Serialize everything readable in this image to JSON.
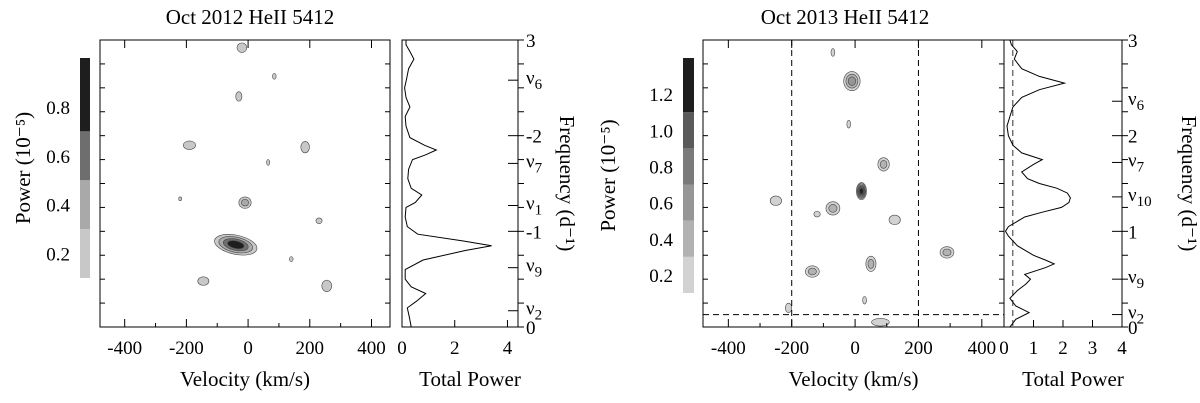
{
  "chart_data": [
    {
      "type": "heatmap",
      "title": "Oct 2012 HeII 5412",
      "colorbar": {
        "label": "Power (10⁻⁵)",
        "ticks": [
          "0.2",
          "0.4",
          "0.6",
          "0.8"
        ],
        "tick_values": [
          0.2,
          0.4,
          0.6,
          0.8
        ],
        "range": [
          0.1,
          1.0
        ],
        "levels": [
          {
            "from": 0.1,
            "to": 0.3,
            "color": "#c8c8c8"
          },
          {
            "from": 0.3,
            "to": 0.5,
            "color": "#a9a9a9"
          },
          {
            "from": 0.5,
            "to": 0.7,
            "color": "#6e6e6e"
          },
          {
            "from": 0.7,
            "to": 1.0,
            "color": "#1e1e1e"
          }
        ]
      },
      "map": {
        "xlabel": "Velocity (km/s)",
        "xticks": [
          -400,
          -200,
          0,
          200,
          400
        ],
        "xlim": [
          -480,
          460
        ],
        "ylim": [
          0,
          3
        ],
        "dashed_v": [],
        "dashed_h": [],
        "blobs": [
          {
            "v": -40,
            "f": 0.86,
            "p": 0.9,
            "rx": 70,
            "ry": 0.1,
            "rot": 12
          },
          {
            "v": 255,
            "f": 0.43,
            "p": 0.28,
            "rx": 16,
            "ry": 0.06,
            "rot": 0
          },
          {
            "v": -145,
            "f": 0.48,
            "p": 0.22,
            "rx": 18,
            "ry": 0.045,
            "rot": 0
          },
          {
            "v": 230,
            "f": 1.11,
            "p": 0.15,
            "rx": 10,
            "ry": 0.03,
            "rot": 0
          },
          {
            "v": 140,
            "f": 0.71,
            "p": 0.12,
            "rx": 6,
            "ry": 0.025,
            "rot": 0
          },
          {
            "v": -10,
            "f": 1.3,
            "p": 0.3,
            "rx": 20,
            "ry": 0.06,
            "rot": 0
          },
          {
            "v": -190,
            "f": 1.9,
            "p": 0.22,
            "rx": 20,
            "ry": 0.045,
            "rot": 0
          },
          {
            "v": 185,
            "f": 1.88,
            "p": 0.22,
            "rx": 14,
            "ry": 0.06,
            "rot": 0
          },
          {
            "v": 65,
            "f": 1.72,
            "p": 0.12,
            "rx": 5,
            "ry": 0.03,
            "rot": 0
          },
          {
            "v": -220,
            "f": 1.34,
            "p": 0.1,
            "rx": 3,
            "ry": 0.02,
            "rot": 0
          },
          {
            "v": -30,
            "f": 2.41,
            "p": 0.16,
            "rx": 10,
            "ry": 0.05,
            "rot": 0
          },
          {
            "v": 85,
            "f": 2.62,
            "p": 0.12,
            "rx": 6,
            "ry": 0.03,
            "rot": 0
          },
          {
            "v": -20,
            "f": 2.92,
            "p": 0.22,
            "rx": 16,
            "ry": 0.05,
            "rot": 0
          }
        ]
      },
      "power": {
        "xlabel": "Total Power",
        "xticks": [
          0,
          2,
          4
        ],
        "xlim": [
          0,
          4.4
        ],
        "vline": null,
        "profile": [
          [
            0.0,
            0.35
          ],
          [
            0.1,
            0.28
          ],
          [
            0.2,
            0.2
          ],
          [
            0.27,
            0.55
          ],
          [
            0.35,
            0.9
          ],
          [
            0.42,
            0.35
          ],
          [
            0.5,
            0.12
          ],
          [
            0.6,
            0.12
          ],
          [
            0.7,
            0.8
          ],
          [
            0.8,
            2.4
          ],
          [
            0.85,
            3.4
          ],
          [
            0.9,
            2.3
          ],
          [
            0.97,
            0.6
          ],
          [
            1.05,
            0.2
          ],
          [
            1.15,
            0.12
          ],
          [
            1.25,
            0.15
          ],
          [
            1.3,
            0.5
          ],
          [
            1.38,
            0.75
          ],
          [
            1.45,
            0.35
          ],
          [
            1.55,
            0.22
          ],
          [
            1.65,
            0.25
          ],
          [
            1.75,
            0.4
          ],
          [
            1.8,
            0.9
          ],
          [
            1.85,
            1.3
          ],
          [
            1.9,
            0.85
          ],
          [
            1.98,
            0.3
          ],
          [
            2.1,
            0.15
          ],
          [
            2.2,
            0.12
          ],
          [
            2.3,
            0.3
          ],
          [
            2.4,
            0.15
          ],
          [
            2.5,
            0.1
          ],
          [
            2.6,
            0.18
          ],
          [
            2.7,
            0.25
          ],
          [
            2.8,
            0.45
          ],
          [
            2.88,
            0.3
          ],
          [
            2.95,
            0.15
          ],
          [
            3.0,
            0.15
          ]
        ]
      },
      "frequency_axis": {
        "label": "Frequency (d⁻¹)",
        "ylim": [
          0,
          3
        ],
        "ticks": [
          {
            "value": 0,
            "label": "0"
          },
          {
            "value": 0.17,
            "label": "ν2"
          },
          {
            "value": 0.62,
            "label": "ν9"
          },
          {
            "value": 1.0,
            "label": "-1"
          },
          {
            "value": 1.27,
            "label": "ν1"
          },
          {
            "value": 1.71,
            "label": "ν7"
          },
          {
            "value": 2.0,
            "label": "-2"
          },
          {
            "value": 2.58,
            "label": "ν6"
          },
          {
            "value": 3.0,
            "label": "3"
          }
        ]
      }
    },
    {
      "type": "heatmap",
      "title": "Oct 2013 HeII 5412",
      "colorbar": {
        "label": "Power (10⁻⁵)",
        "ticks": [
          "0.2",
          "0.4",
          "0.6",
          "0.8",
          "1.0",
          "1.2"
        ],
        "tick_values": [
          0.2,
          0.4,
          0.6,
          0.8,
          1.0,
          1.2
        ],
        "range": [
          0.1,
          1.4
        ],
        "levels": [
          {
            "from": 0.1,
            "to": 0.3,
            "color": "#d2d2d2"
          },
          {
            "from": 0.3,
            "to": 0.5,
            "color": "#b2b2b2"
          },
          {
            "from": 0.5,
            "to": 0.7,
            "color": "#969696"
          },
          {
            "from": 0.7,
            "to": 0.9,
            "color": "#7a7a7a"
          },
          {
            "from": 0.9,
            "to": 1.1,
            "color": "#5a5a5a"
          },
          {
            "from": 1.1,
            "to": 1.4,
            "color": "#1e1e1e"
          }
        ]
      },
      "map": {
        "xlabel": "Velocity (km/s)",
        "xticks": [
          -400,
          -200,
          0,
          200,
          400
        ],
        "xlim": [
          -480,
          470
        ],
        "ylim": [
          0,
          3
        ],
        "dashed_v": [
          -200,
          200
        ],
        "dashed_h": [
          0.13
        ],
        "blobs": [
          {
            "v": 20,
            "f": 1.42,
            "p": 1.3,
            "rx": 16,
            "ry": 0.09,
            "rot": 0
          },
          {
            "v": -10,
            "f": 2.57,
            "p": 0.5,
            "rx": 26,
            "ry": 0.1,
            "rot": 0
          },
          {
            "v": 90,
            "f": 1.7,
            "p": 0.4,
            "rx": 18,
            "ry": 0.07,
            "rot": 0
          },
          {
            "v": -70,
            "f": 1.24,
            "p": 0.35,
            "rx": 22,
            "ry": 0.07,
            "rot": 0
          },
          {
            "v": -250,
            "f": 1.32,
            "p": 0.2,
            "rx": 18,
            "ry": 0.05,
            "rot": 0
          },
          {
            "v": -120,
            "f": 1.18,
            "p": 0.15,
            "rx": 10,
            "ry": 0.03,
            "rot": 0
          },
          {
            "v": 125,
            "f": 1.12,
            "p": 0.25,
            "rx": 18,
            "ry": 0.05,
            "rot": 0
          },
          {
            "v": 290,
            "f": 0.78,
            "p": 0.35,
            "rx": 22,
            "ry": 0.06,
            "rot": 0
          },
          {
            "v": 50,
            "f": 0.66,
            "p": 0.35,
            "rx": 16,
            "ry": 0.08,
            "rot": 0
          },
          {
            "v": -135,
            "f": 0.58,
            "p": 0.3,
            "rx": 22,
            "ry": 0.06,
            "rot": 0
          },
          {
            "v": -20,
            "f": 2.12,
            "p": 0.15,
            "rx": 6,
            "ry": 0.04,
            "rot": 0
          },
          {
            "v": -70,
            "f": 2.87,
            "p": 0.15,
            "rx": 6,
            "ry": 0.04,
            "rot": 0
          },
          {
            "v": -110,
            "f": 3.07,
            "p": 0.2,
            "rx": 12,
            "ry": 0.05,
            "rot": 0
          },
          {
            "v": -210,
            "f": 0.2,
            "p": 0.15,
            "rx": 10,
            "ry": 0.05,
            "rot": 0
          },
          {
            "v": 30,
            "f": 0.28,
            "p": 0.15,
            "rx": 6,
            "ry": 0.04,
            "rot": 0
          },
          {
            "v": 80,
            "f": 0.05,
            "p": 0.12,
            "rx": 28,
            "ry": 0.04,
            "rot": 0
          }
        ]
      },
      "power": {
        "xlabel": "Total Power",
        "xticks": [
          0,
          1,
          2,
          3,
          4
        ],
        "xlim": [
          0,
          4
        ],
        "vline": 0.3,
        "profile": [
          [
            0.0,
            0.2
          ],
          [
            0.08,
            0.4
          ],
          [
            0.15,
            0.85
          ],
          [
            0.22,
            0.4
          ],
          [
            0.3,
            0.2
          ],
          [
            0.38,
            0.45
          ],
          [
            0.45,
            0.75
          ],
          [
            0.5,
            0.9
          ],
          [
            0.55,
            0.7
          ],
          [
            0.62,
            1.4
          ],
          [
            0.66,
            1.7
          ],
          [
            0.7,
            1.4
          ],
          [
            0.75,
            1.0
          ],
          [
            0.85,
            0.45
          ],
          [
            0.95,
            0.15
          ],
          [
            1.0,
            0.05
          ],
          [
            1.05,
            0.15
          ],
          [
            1.15,
            0.7
          ],
          [
            1.2,
            1.3
          ],
          [
            1.25,
            1.95
          ],
          [
            1.3,
            2.2
          ],
          [
            1.35,
            2.25
          ],
          [
            1.4,
            2.15
          ],
          [
            1.45,
            1.8
          ],
          [
            1.5,
            1.2
          ],
          [
            1.55,
            0.8
          ],
          [
            1.62,
            0.6
          ],
          [
            1.7,
            1.0
          ],
          [
            1.75,
            1.3
          ],
          [
            1.82,
            0.6
          ],
          [
            1.9,
            0.3
          ],
          [
            2.0,
            0.15
          ],
          [
            2.1,
            0.1
          ],
          [
            2.2,
            0.2
          ],
          [
            2.3,
            0.3
          ],
          [
            2.4,
            0.6
          ],
          [
            2.48,
            1.2
          ],
          [
            2.55,
            2.05
          ],
          [
            2.62,
            1.2
          ],
          [
            2.7,
            0.6
          ],
          [
            2.8,
            0.35
          ],
          [
            2.88,
            0.45
          ],
          [
            2.95,
            0.25
          ],
          [
            3.0,
            0.2
          ]
        ]
      },
      "frequency_axis": {
        "label": "Frequency (d⁻¹)",
        "ylim": [
          0,
          3
        ],
        "ticks": [
          {
            "value": 0,
            "label": "0"
          },
          {
            "value": 0.13,
            "label": "ν2"
          },
          {
            "value": 0.5,
            "label": "ν9"
          },
          {
            "value": 1.0,
            "label": "1"
          },
          {
            "value": 1.36,
            "label": "ν10"
          },
          {
            "value": 1.72,
            "label": "ν7"
          },
          {
            "value": 2.0,
            "label": "2"
          },
          {
            "value": 2.36,
            "label": "ν6"
          },
          {
            "value": 3.0,
            "label": "3"
          }
        ]
      }
    }
  ]
}
